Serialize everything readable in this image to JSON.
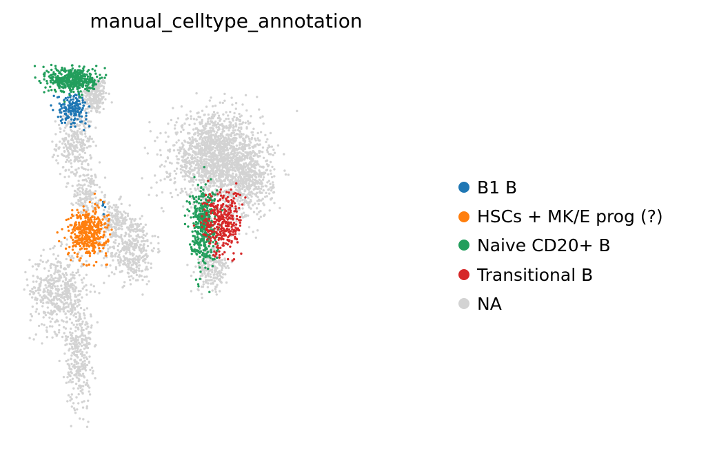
{
  "chart_data": {
    "type": "scatter",
    "title": "manual_celltype_annotation",
    "xlabel": "",
    "ylabel": "",
    "axes_visible": false,
    "grid": false,
    "legend_position": "right",
    "point_size": "small",
    "series": [
      {
        "name": "B1 B",
        "color": "#1f77b4",
        "clusters": [
          {
            "cx": 11.4,
            "cy": 84.8,
            "sx": 1.8,
            "sy": 1.9,
            "n": 170
          },
          {
            "cx": 19.3,
            "cy": 60.2,
            "sx": 0.2,
            "sy": 0.9,
            "n": 7
          }
        ]
      },
      {
        "name": "HSCs + MK/E prog (?)",
        "color": "#ff7f0e",
        "clusters": [
          {
            "cx": 15.2,
            "cy": 53.0,
            "sx": 2.4,
            "sy": 3.0,
            "n": 400
          },
          {
            "cx": 51.5,
            "cy": 62.8,
            "sx": 0.2,
            "sy": 0.2,
            "n": 1
          },
          {
            "cx": 51.0,
            "cy": 55.3,
            "sx": 0.2,
            "sy": 0.2,
            "n": 1
          }
        ]
      },
      {
        "name": "Naive CD20+ B",
        "color": "#229e5c",
        "clusters": [
          {
            "cx": 11.5,
            "cy": 92.0,
            "sx": 2.9,
            "sy": 1.6,
            "n": 450
          },
          {
            "cx": 43.7,
            "cy": 55.0,
            "sx": 1.6,
            "sy": 5.0,
            "n": 420
          }
        ]
      },
      {
        "name": "Transitional B",
        "color": "#d62728",
        "clusters": [
          {
            "cx": 48.5,
            "cy": 55.5,
            "sx": 2.4,
            "sy": 4.2,
            "n": 330
          }
        ]
      },
      {
        "name": "NA",
        "color": "#d3d3d3",
        "clusters": [
          {
            "cx": 17.0,
            "cy": 88.0,
            "sx": 1.5,
            "sy": 2.5,
            "n": 220
          },
          {
            "cx": 12.0,
            "cy": 76.0,
            "sx": 2.2,
            "sy": 4.5,
            "n": 300
          },
          {
            "cx": 15.0,
            "cy": 63.0,
            "sx": 1.5,
            "sy": 3.0,
            "n": 150
          },
          {
            "cx": 21.5,
            "cy": 56.0,
            "sx": 2.0,
            "sy": 2.5,
            "n": 120
          },
          {
            "cx": 26.0,
            "cy": 49.0,
            "sx": 3.0,
            "sy": 4.5,
            "n": 380
          },
          {
            "cx": 8.0,
            "cy": 38.0,
            "sx": 3.5,
            "sy": 5.0,
            "n": 480
          },
          {
            "cx": 13.0,
            "cy": 22.0,
            "sx": 1.6,
            "sy": 7.0,
            "n": 320
          },
          {
            "cx": 47.0,
            "cy": 72.0,
            "sx": 5.5,
            "sy": 5.5,
            "n": 1600
          },
          {
            "cx": 55.0,
            "cy": 66.0,
            "sx": 3.0,
            "sy": 5.0,
            "n": 400
          },
          {
            "cx": 46.0,
            "cy": 44.0,
            "sx": 2.0,
            "sy": 3.0,
            "n": 220
          }
        ]
      }
    ],
    "legend": [
      {
        "label": "B1 B",
        "color": "#1f77b4"
      },
      {
        "label": "HSCs + MK/E prog (?)",
        "color": "#ff7f0e"
      },
      {
        "label": "Naive CD20+ B",
        "color": "#229e5c"
      },
      {
        "label": "Transitional B",
        "color": "#d62728"
      },
      {
        "label": "NA",
        "color": "#d3d3d3"
      }
    ]
  }
}
